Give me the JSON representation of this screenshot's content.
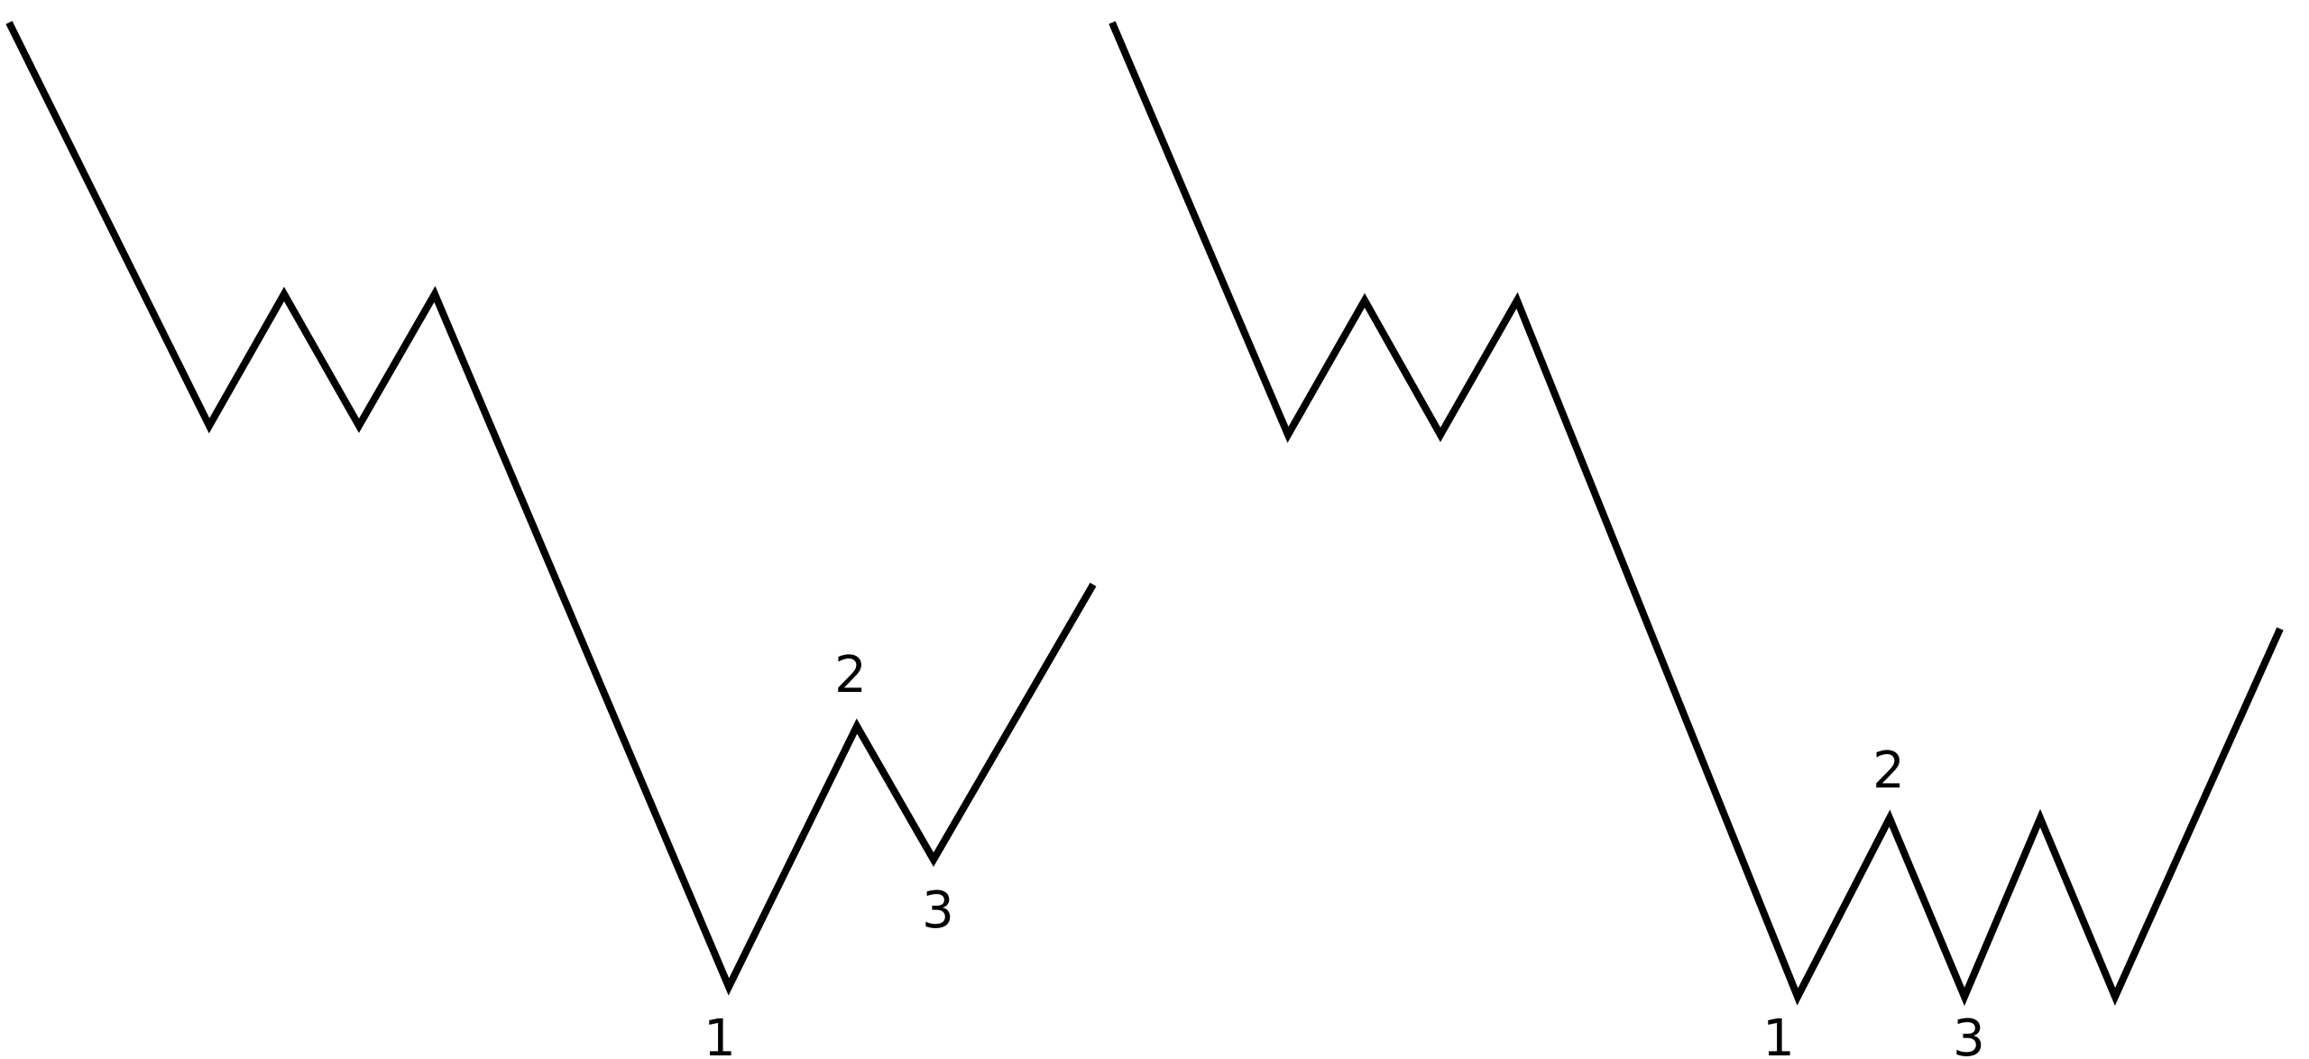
{
  "colors": {
    "background": "#ffffff",
    "line": "#000000",
    "label": "#000000"
  },
  "diagrams": [
    {
      "id": "left",
      "labels": {
        "one": "1",
        "two": "2",
        "three": "3"
      }
    },
    {
      "id": "right",
      "labels": {
        "one": "1",
        "two": "2",
        "three": "3"
      }
    }
  ]
}
